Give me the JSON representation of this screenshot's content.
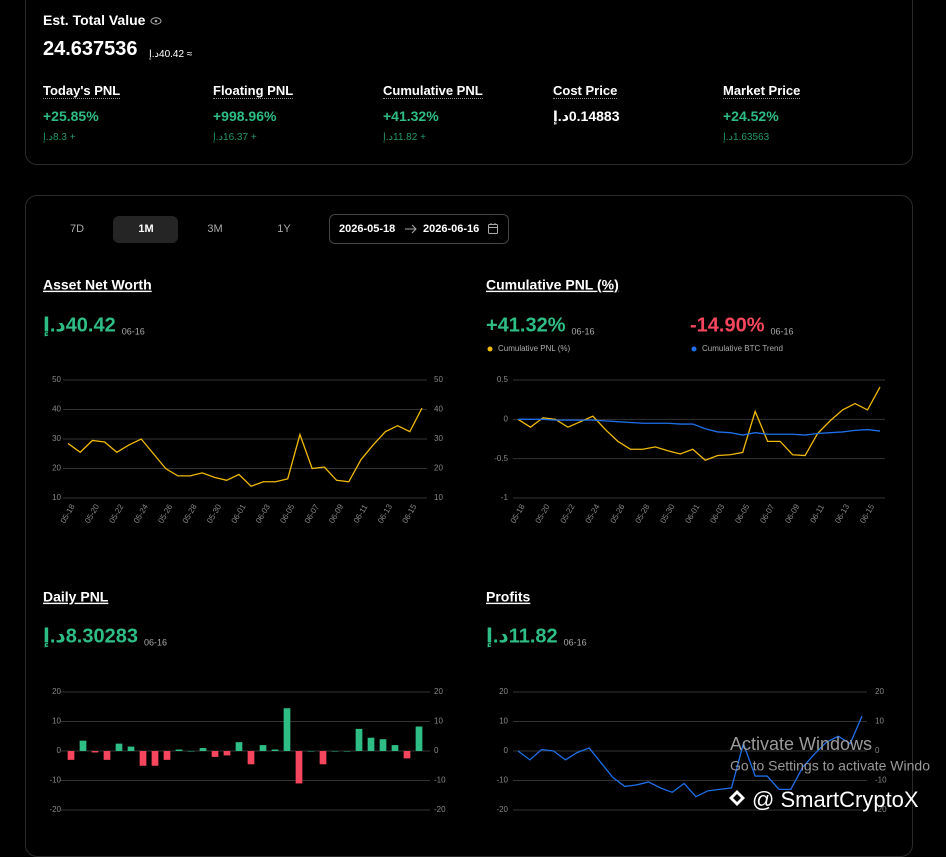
{
  "summary": {
    "title": "Est. Total Value",
    "value": "24.637536",
    "approx": "≈ 40.42د.إ",
    "stats": [
      {
        "label": "Today's PNL",
        "value": "+25.85%",
        "sub": "+ 8.3د.إ",
        "color": "#2ebd85"
      },
      {
        "label": "Floating PNL",
        "value": "+998.96%",
        "sub": "+ 16.37د.إ",
        "color": "#2ebd85"
      },
      {
        "label": "Cumulative PNL",
        "value": "+41.32%",
        "sub": "+ 11.82د.إ",
        "color": "#2ebd85"
      },
      {
        "label": "Cost Price",
        "value": "0.14883د.إ",
        "color": "#ffffff"
      },
      {
        "label": "Market Price",
        "value": "+24.52%",
        "sub": "1.63563د.إ",
        "color": "#2ebd85"
      }
    ]
  },
  "tabs": [
    "7D",
    "1M",
    "3M",
    "1Y"
  ],
  "active_tab": 1,
  "date_range": {
    "start": "2026-05-18",
    "end": "2026-06-16"
  },
  "chart_data": [
    {
      "type": "line",
      "title": "Asset Net Worth",
      "headlines": [
        {
          "text": "40.42د.إ",
          "color": "#2ebd85"
        }
      ],
      "headline_date": "06-16",
      "categories": [
        "05-18",
        null,
        "05-20",
        null,
        "05-22",
        null,
        "05-24",
        null,
        "05-26",
        null,
        "05-28",
        null,
        "05-30",
        null,
        "06-01",
        null,
        "06-03",
        null,
        "06-05",
        null,
        "06-07",
        null,
        "06-09",
        null,
        "06-11",
        null,
        "06-13",
        null,
        "06-15",
        null
      ],
      "values": [
        28.5,
        25.5,
        29.5,
        29,
        25.5,
        28,
        30,
        25,
        20,
        17.5,
        17.5,
        18.5,
        17,
        16,
        18,
        14,
        15.5,
        15.5,
        16.5,
        31.5,
        20,
        20.5,
        16,
        15.5,
        23,
        28,
        32.5,
        34.5,
        32.5,
        40.5
      ],
      "color": "#f0b90b",
      "ylim": [
        10,
        50
      ],
      "yticks": [
        10,
        20,
        30,
        40,
        50
      ],
      "mirror_axis": true,
      "grid": true
    },
    {
      "type": "line",
      "title": "Cumulative PNL (%)",
      "headlines": [
        {
          "text": "+41.32%",
          "color": "#2ebd85"
        },
        {
          "text": "-14.90%",
          "color": "#f6465d"
        }
      ],
      "headline_date": "06-16",
      "categories": [
        "05-18",
        null,
        "05-20",
        null,
        "05-22",
        null,
        "05-24",
        null,
        "05-26",
        null,
        "05-28",
        null,
        "05-30",
        null,
        "06-01",
        null,
        "06-03",
        null,
        "06-05",
        null,
        "06-07",
        null,
        "06-09",
        null,
        "06-11",
        null,
        "06-13",
        null,
        "06-15",
        null
      ],
      "series": [
        {
          "name": "Cumulative PNL (%)",
          "color": "#f0b90b",
          "values": [
            0,
            -0.1,
            0.02,
            0,
            -0.1,
            -0.03,
            0.04,
            -0.13,
            -0.28,
            -0.38,
            -0.38,
            -0.35,
            -0.4,
            -0.44,
            -0.38,
            -0.52,
            -0.46,
            -0.45,
            -0.42,
            0.1,
            -0.28,
            -0.28,
            -0.45,
            -0.46,
            -0.18,
            -0.02,
            0.12,
            0.2,
            0.12,
            0.41
          ]
        },
        {
          "name": "Cumulative BTC Trend",
          "color": "#1e6fe8",
          "values": [
            0,
            0,
            0,
            -0.01,
            -0.01,
            -0.01,
            -0.01,
            -0.02,
            -0.03,
            -0.04,
            -0.05,
            -0.05,
            -0.05,
            -0.06,
            -0.06,
            -0.12,
            -0.16,
            -0.17,
            -0.2,
            -0.17,
            -0.19,
            -0.19,
            -0.19,
            -0.2,
            -0.18,
            -0.17,
            -0.16,
            -0.14,
            -0.13,
            -0.149
          ]
        }
      ],
      "ylim": [
        -1,
        0.5
      ],
      "yticks": [
        -1,
        -0.5,
        0,
        0.5
      ],
      "mirror_axis": false,
      "grid": true
    },
    {
      "type": "bar",
      "title": "Daily PNL",
      "headlines": [
        {
          "text": "8.30283د.إ",
          "color": "#2ebd85"
        }
      ],
      "headline_date": "06-16",
      "values": [
        -3,
        3.5,
        -0.5,
        -3,
        2.5,
        1.5,
        -5,
        -5,
        -3,
        0.5,
        0,
        1,
        -2,
        -1.5,
        3,
        -4.5,
        2,
        0.5,
        14.5,
        -11,
        0,
        -4.5,
        0,
        0,
        7.5,
        4.5,
        4,
        2,
        -2.5,
        8.3
      ],
      "color": "#2ebd85",
      "negative_color": "#f6465d",
      "ylim": [
        -20,
        20
      ],
      "yticks": [
        -20,
        -10,
        0,
        10,
        20
      ],
      "mirror_axis": true,
      "grid": true
    },
    {
      "type": "line",
      "title": "Profits",
      "headlines": [
        {
          "text": "11.82د.إ",
          "color": "#2ebd85"
        }
      ],
      "headline_date": "06-16",
      "values": [
        0,
        -3,
        0.5,
        0,
        -3,
        -0.5,
        1,
        -4,
        -9,
        -12,
        -11.5,
        -10.5,
        -12.5,
        -14,
        -11,
        -15.5,
        -13.5,
        -13,
        -12.5,
        2.5,
        -8.5,
        -8.5,
        -13,
        -13,
        -5.5,
        -1,
        3,
        5,
        2.5,
        11.82
      ],
      "color": "#1e6fe8",
      "ylim": [
        -20,
        20
      ],
      "yticks": [
        -20,
        -10,
        0,
        10,
        20
      ],
      "mirror_axis": true,
      "grid": true
    }
  ],
  "watermark": {
    "activate": "Activate Windows",
    "settings": "Go to Settings to activate Windo",
    "brand": "@ SmartCryptoX"
  }
}
